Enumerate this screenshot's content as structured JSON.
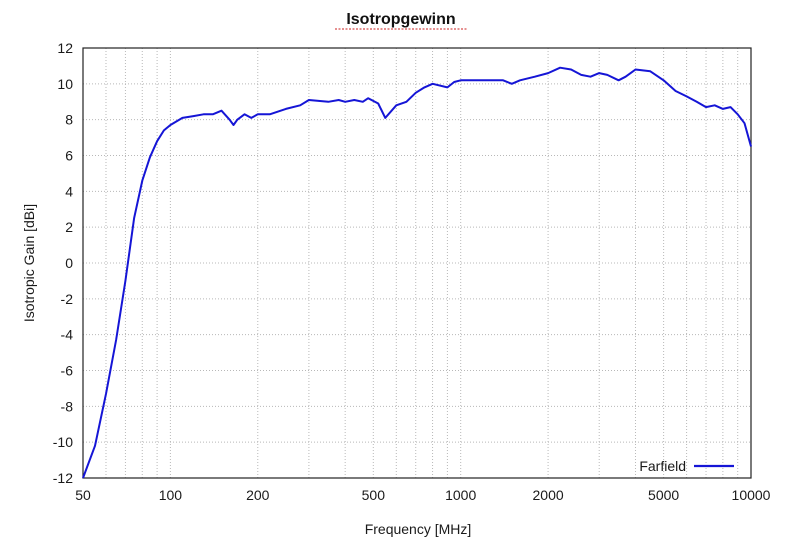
{
  "chart_data": {
    "type": "line",
    "title": "Isotropgewinn",
    "xlabel": "Frequency [MHz]",
    "ylabel": "Isotropic Gain [dBi]",
    "xscale": "log",
    "xlim": [
      50,
      10000
    ],
    "ylim": [
      -12,
      12
    ],
    "xticks": [
      50,
      100,
      200,
      500,
      1000,
      2000,
      5000,
      10000
    ],
    "xtick_labels": [
      "50",
      "100",
      "200",
      "500",
      "1000",
      "2000",
      "5000",
      "10000"
    ],
    "yticks": [
      -12,
      -10,
      -8,
      -6,
      -4,
      -2,
      0,
      2,
      4,
      6,
      8,
      10,
      12
    ],
    "ytick_labels": [
      "-12",
      "-10",
      "-8",
      "-6",
      "-4",
      "-2",
      "0",
      "2",
      "4",
      "6",
      "8",
      "10",
      "12"
    ],
    "grid": true,
    "legend_position": "bottom-right",
    "series": [
      {
        "name": "Farfield",
        "color": "#1515d6",
        "x": [
          50,
          55,
          60,
          65,
          70,
          75,
          80,
          85,
          90,
          95,
          100,
          110,
          120,
          130,
          140,
          150,
          160,
          165,
          170,
          180,
          190,
          200,
          220,
          250,
          280,
          300,
          350,
          380,
          400,
          430,
          460,
          480,
          520,
          550,
          600,
          650,
          700,
          750,
          800,
          900,
          950,
          1000,
          1200,
          1400,
          1500,
          1600,
          1800,
          2000,
          2200,
          2400,
          2600,
          2800,
          3000,
          3200,
          3500,
          3700,
          4000,
          4500,
          5000,
          5500,
          6000,
          6500,
          7000,
          7500,
          8000,
          8500,
          9000,
          9500,
          10000
        ],
        "values": [
          -12,
          -10.2,
          -7.3,
          -4.3,
          -1,
          2.5,
          4.6,
          5.9,
          6.8,
          7.4,
          7.7,
          8.1,
          8.2,
          8.3,
          8.3,
          8.5,
          8.0,
          7.7,
          8.0,
          8.3,
          8.1,
          8.3,
          8.3,
          8.6,
          8.8,
          9.1,
          9.0,
          9.1,
          9.0,
          9.1,
          9.0,
          9.2,
          8.9,
          8.1,
          8.8,
          9.0,
          9.5,
          9.8,
          10.0,
          9.8,
          10.1,
          10.2,
          10.2,
          10.2,
          10.0,
          10.2,
          10.4,
          10.6,
          10.9,
          10.8,
          10.5,
          10.4,
          10.6,
          10.5,
          10.2,
          10.4,
          10.8,
          10.7,
          10.2,
          9.6,
          9.3,
          9.0,
          8.7,
          8.8,
          8.6,
          8.7,
          8.3,
          7.8,
          6.5
        ]
      }
    ]
  }
}
